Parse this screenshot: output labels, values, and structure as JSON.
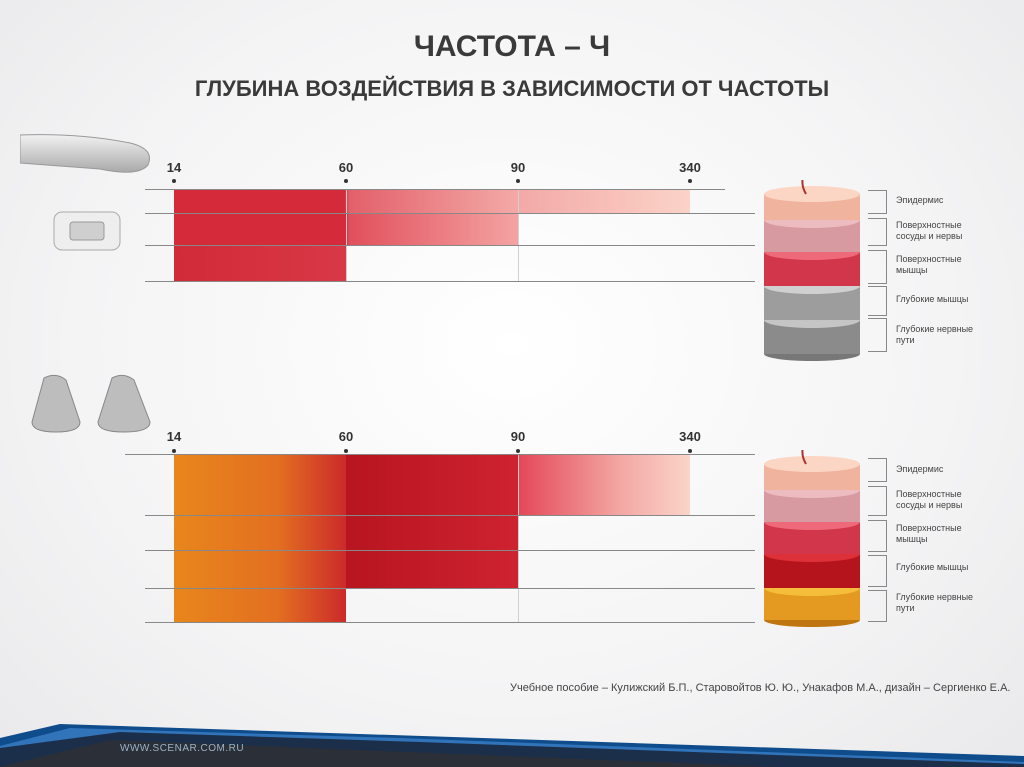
{
  "title": "ЧАСТОТА – Ч",
  "subtitle": "ГЛУБИНА ВОЗДЕЙСТВИЯ В ЗАВИСИМОСТИ ОТ ЧАСТОТЫ",
  "ticks": [
    "14",
    "60",
    "90",
    "340"
  ],
  "layers": [
    "Эпидермис",
    "Поверхностные сосуды и нервы",
    "Поверхностные мышцы",
    "Глубокие мышцы",
    "Глубокие нервные пути"
  ],
  "footer": "Учебное пособие –  Кулижский Б.П., Старовойтов Ю. Ю., Унакафов М.А., дизайн – Сергиенко Е.А.",
  "site": "WWW.SCENAR.COM.RU",
  "chart_data": [
    {
      "type": "bar",
      "note_categories": [
        "14",
        "60",
        "90",
        "340"
      ],
      "rows": [
        {
          "from": "14",
          "to": "340"
        },
        {
          "from": "14",
          "to": "90"
        },
        {
          "from": "14",
          "to": "60"
        }
      ],
      "colors": [
        "#d12c3c",
        "#f9c7b8"
      ]
    },
    {
      "type": "bar",
      "rows": [
        {
          "from": "14",
          "to": "340"
        },
        {
          "from": "14",
          "to": "340"
        },
        {
          "from": "14",
          "to": "90"
        },
        {
          "from": "14",
          "to": "90"
        },
        {
          "from": "14",
          "to": "60"
        }
      ],
      "colors": [
        "#e8861c",
        "#c61a2a",
        "#f9c7b8"
      ]
    }
  ]
}
